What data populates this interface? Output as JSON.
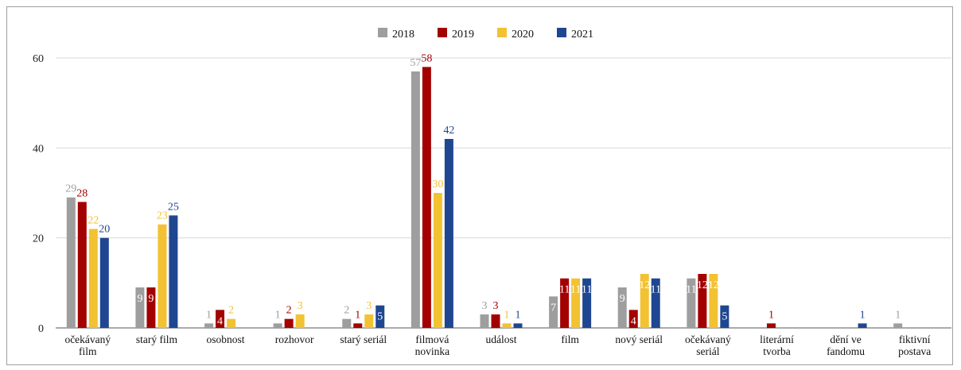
{
  "chart_data": {
    "type": "bar",
    "categories": [
      [
        "očekávaný",
        "film"
      ],
      [
        "starý film"
      ],
      [
        "osobnost"
      ],
      [
        "rozhovor"
      ],
      [
        "starý seriál"
      ],
      [
        "filmová",
        "novinka"
      ],
      [
        "událost"
      ],
      [
        "film"
      ],
      [
        "nový seriál"
      ],
      [
        "očekávaný",
        "seriál"
      ],
      [
        "literární",
        "tvorba"
      ],
      [
        "dění ve",
        "fandomu"
      ],
      [
        "fiktivní",
        "postava"
      ]
    ],
    "series": [
      {
        "name": "2018",
        "color": "#9e9e9e",
        "values": [
          29,
          9,
          1,
          1,
          2,
          57,
          3,
          7,
          9,
          11,
          0,
          0,
          1
        ]
      },
      {
        "name": "2019",
        "color": "#a30000",
        "values": [
          28,
          9,
          4,
          2,
          1,
          58,
          3,
          11,
          4,
          12,
          1,
          0,
          0
        ]
      },
      {
        "name": "2020",
        "color": "#f2c232",
        "values": [
          22,
          23,
          2,
          3,
          3,
          30,
          1,
          11,
          12,
          12,
          0,
          0,
          0
        ]
      },
      {
        "name": "2021",
        "color": "#1f4690",
        "values": [
          20,
          25,
          0,
          0,
          5,
          42,
          1,
          11,
          11,
          5,
          0,
          1,
          0
        ]
      }
    ],
    "yticks": [
      0,
      20,
      40,
      60
    ],
    "ylim": [
      0,
      60
    ],
    "grid": true,
    "legend": "top-center",
    "title": "",
    "xlabel": "",
    "ylabel": ""
  }
}
